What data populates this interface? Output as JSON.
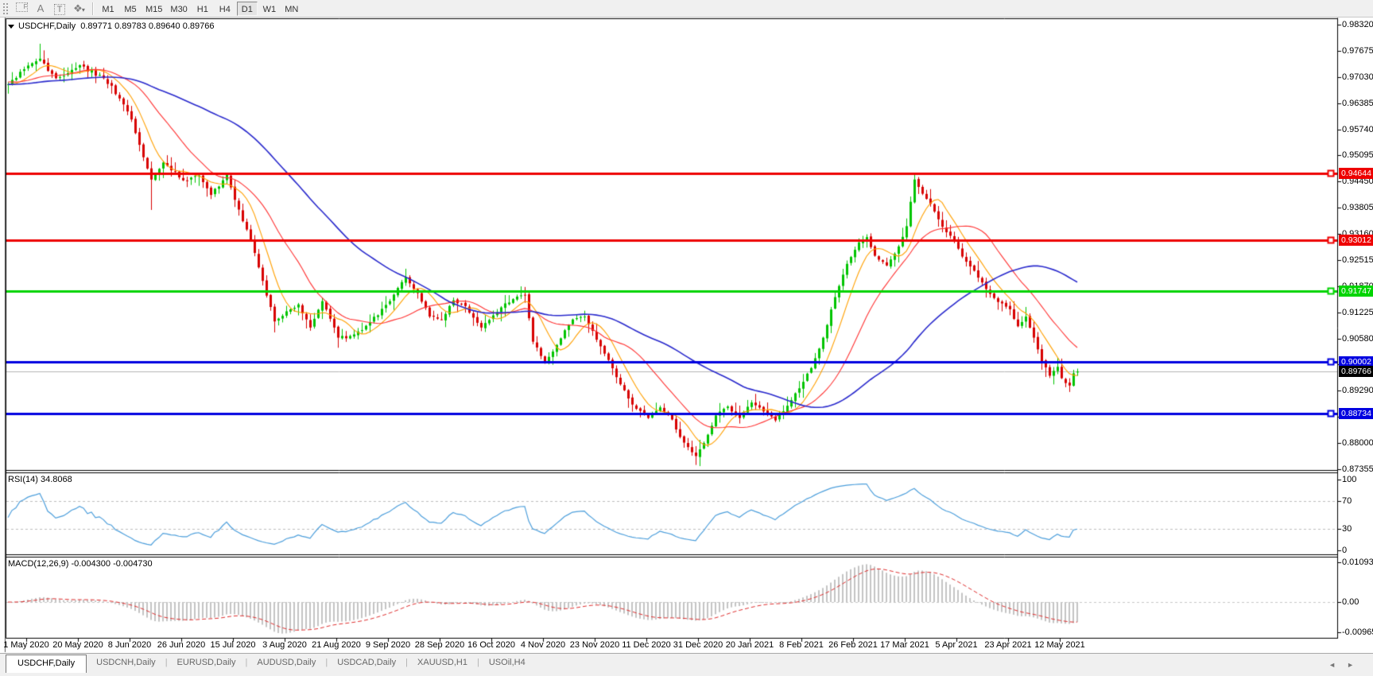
{
  "toolbar": {
    "icons": [
      {
        "name": "fibonacci-icon",
        "glyph": "F"
      },
      {
        "name": "text-label-icon",
        "glyph": "A"
      },
      {
        "name": "text-box-icon",
        "glyph": "T"
      },
      {
        "name": "shapes-dropdown-icon",
        "glyph": "❖",
        "caret": "▾"
      }
    ],
    "timeframes": [
      {
        "label": "M1",
        "active": false
      },
      {
        "label": "M5",
        "active": false
      },
      {
        "label": "M15",
        "active": false
      },
      {
        "label": "M30",
        "active": false
      },
      {
        "label": "H1",
        "active": false
      },
      {
        "label": "H4",
        "active": false
      },
      {
        "label": "D1",
        "active": true
      },
      {
        "label": "W1",
        "active": false
      },
      {
        "label": "MN",
        "active": false
      }
    ]
  },
  "chart": {
    "title": "USDCHF,Daily",
    "ohlc_text": "0.89771 0.89783 0.89640 0.89766"
  },
  "panels": {
    "rsi_label": "RSI(14) 34.8068",
    "macd_label": "MACD(12,26,9) -0.004300 -0.004730"
  },
  "tabs": [
    {
      "label": "USDCHF,Daily",
      "active": true
    },
    {
      "label": "USDCNH,Daily",
      "active": false
    },
    {
      "label": "EURUSD,Daily",
      "active": false
    },
    {
      "label": "AUDUSD,Daily",
      "active": false
    },
    {
      "label": "USDCAD,Daily",
      "active": false
    },
    {
      "label": "XAUUSD,H1",
      "active": false
    },
    {
      "label": "USOil,H4",
      "active": false
    }
  ],
  "tab_arrows": {
    "left": "◄",
    "right": "►"
  },
  "chart_data": {
    "type": "candlestick",
    "symbol": "USDCHF",
    "timeframe": "Daily",
    "last_bar": {
      "open": 0.89771,
      "high": 0.89783,
      "low": 0.8964,
      "close": 0.89766
    },
    "price_axis_ticks": [
      "0.98320",
      "0.97675",
      "0.97030",
      "0.96385",
      "0.95740",
      "0.95095",
      "0.94450",
      "0.93805",
      "0.93160",
      "0.92515",
      "0.91870",
      "0.91225",
      "0.90580",
      "0.89935",
      "0.89290",
      "0.88645",
      "0.88000",
      "0.87355"
    ],
    "date_ticks": [
      "1 May 2020",
      "20 May 2020",
      "8 Jun 2020",
      "26 Jun 2020",
      "15 Jul 2020",
      "3 Aug 2020",
      "21 Aug 2020",
      "9 Sep 2020",
      "28 Sep 2020",
      "16 Oct 2020",
      "4 Nov 2020",
      "23 Nov 2020",
      "11 Dec 2020",
      "31 Dec 2020",
      "20 Jan 2021",
      "8 Feb 2021",
      "26 Feb 2021",
      "17 Mar 2021",
      "5 Apr 2021",
      "23 Apr 2021",
      "12 May 2021"
    ],
    "horizontal_lines": [
      {
        "label": "0.94644",
        "value": 0.94644,
        "color": "#ee0000"
      },
      {
        "label": "0.93012",
        "value": 0.93012,
        "color": "#ee0000"
      },
      {
        "label": "0.91747",
        "value": 0.91747,
        "color": "#00d400"
      },
      {
        "label": "0.90002",
        "value": 0.90002,
        "color": "#0000e0"
      },
      {
        "label": "0.88734",
        "value": 0.88734,
        "color": "#0000e0"
      }
    ],
    "current_price": {
      "label": "0.89766",
      "value": 0.89766,
      "color": "#000000"
    },
    "candle_colors": {
      "bull": "#00c400",
      "bear": "#d80000"
    },
    "moving_averages": [
      {
        "period": 8,
        "color": "#ffa000"
      },
      {
        "period": 20,
        "color": "#ff3232"
      },
      {
        "period": 55,
        "color": "#2a2acd"
      }
    ],
    "rsi": {
      "period": 14,
      "last": 34.8068,
      "color": "#4d9fdc",
      "levels": [
        100,
        70,
        30,
        0
      ],
      "dashed_levels": [
        70,
        30
      ]
    },
    "macd": {
      "fast": 12,
      "slow": 26,
      "signal": 9,
      "last": -0.0043,
      "last_signal": -0.00473,
      "axis": [
        "0.010933",
        "0.00",
        "-0.009653"
      ],
      "hist_color": "#c4c4c4",
      "signal_color": "#e03030"
    },
    "bars_count": 270,
    "price_range": {
      "top": 0.9832,
      "bottom": 0.87355
    },
    "pre_anchors": [
      [
        -60,
        0.97
      ],
      [
        -40,
        0.9665
      ],
      [
        -20,
        0.97
      ],
      [
        -1,
        0.9683
      ]
    ],
    "close_anchors": [
      [
        0,
        0.9685
      ],
      [
        4,
        0.9722
      ],
      [
        8,
        0.9748
      ],
      [
        12,
        0.97
      ],
      [
        18,
        0.9732
      ],
      [
        24,
        0.97
      ],
      [
        28,
        0.965
      ],
      [
        31,
        0.9598
      ],
      [
        34,
        0.9505
      ],
      [
        36,
        0.945
      ],
      [
        39,
        0.9492
      ],
      [
        44,
        0.9448
      ],
      [
        48,
        0.946
      ],
      [
        51,
        0.9412
      ],
      [
        55,
        0.9462
      ],
      [
        57,
        0.94
      ],
      [
        61,
        0.93
      ],
      [
        64,
        0.92
      ],
      [
        67,
        0.91
      ],
      [
        70,
        0.9125
      ],
      [
        73,
        0.9142
      ],
      [
        76,
        0.9085
      ],
      [
        79,
        0.915
      ],
      [
        82,
        0.9085
      ],
      [
        83,
        0.906
      ],
      [
        87,
        0.9068
      ],
      [
        91,
        0.9098
      ],
      [
        96,
        0.915
      ],
      [
        100,
        0.921
      ],
      [
        103,
        0.917
      ],
      [
        106,
        0.9112
      ],
      [
        109,
        0.9105
      ],
      [
        112,
        0.9152
      ],
      [
        115,
        0.9138
      ],
      [
        119,
        0.9085
      ],
      [
        122,
        0.9115
      ],
      [
        127,
        0.9155
      ],
      [
        130,
        0.9165
      ],
      [
        132,
        0.905
      ],
      [
        135,
        0.8998
      ],
      [
        138,
        0.9042
      ],
      [
        142,
        0.9105
      ],
      [
        145,
        0.9112
      ],
      [
        148,
        0.9055
      ],
      [
        151,
        0.9005
      ],
      [
        154,
        0.8945
      ],
      [
        157,
        0.8895
      ],
      [
        161,
        0.8862
      ],
      [
        164,
        0.8888
      ],
      [
        167,
        0.8858
      ],
      [
        169,
        0.8815
      ],
      [
        171,
        0.879
      ],
      [
        173,
        0.8768
      ],
      [
        175,
        0.88
      ],
      [
        178,
        0.8868
      ],
      [
        181,
        0.889
      ],
      [
        184,
        0.8862
      ],
      [
        187,
        0.89
      ],
      [
        190,
        0.8878
      ],
      [
        193,
        0.8856
      ],
      [
        196,
        0.8892
      ],
      [
        199,
        0.8935
      ],
      [
        202,
        0.8985
      ],
      [
        205,
        0.906
      ],
      [
        208,
        0.916
      ],
      [
        211,
        0.9242
      ],
      [
        214,
        0.9295
      ],
      [
        216,
        0.9308
      ],
      [
        218,
        0.9262
      ],
      [
        221,
        0.9238
      ],
      [
        224,
        0.9285
      ],
      [
        226,
        0.9335
      ],
      [
        228,
        0.945
      ],
      [
        230,
        0.9415
      ],
      [
        232,
        0.939
      ],
      [
        234,
        0.9352
      ],
      [
        236,
        0.932
      ],
      [
        238,
        0.9298
      ],
      [
        240,
        0.926
      ],
      [
        243,
        0.9225
      ],
      [
        246,
        0.918
      ],
      [
        249,
        0.9148
      ],
      [
        252,
        0.913
      ],
      [
        254,
        0.9088
      ],
      [
        256,
        0.9112
      ],
      [
        258,
        0.906
      ],
      [
        260,
        0.9002
      ],
      [
        262,
        0.8966
      ],
      [
        264,
        0.8988
      ],
      [
        265,
        0.896
      ],
      [
        267,
        0.8942
      ],
      [
        268,
        0.8972
      ],
      [
        269,
        0.89766
      ]
    ],
    "wick_spikes": [
      {
        "i": 8,
        "high": 0.9785
      },
      {
        "i": 36,
        "low": 0.9375
      },
      {
        "i": 67,
        "low": 0.9073
      },
      {
        "i": 83,
        "low": 0.9035
      },
      {
        "i": 100,
        "high": 0.923
      },
      {
        "i": 130,
        "high": 0.9185
      },
      {
        "i": 173,
        "low": 0.8746
      },
      {
        "i": 216,
        "high": 0.9315
      },
      {
        "i": 228,
        "high": 0.9463
      },
      {
        "i": 267,
        "low": 0.8926
      }
    ]
  }
}
